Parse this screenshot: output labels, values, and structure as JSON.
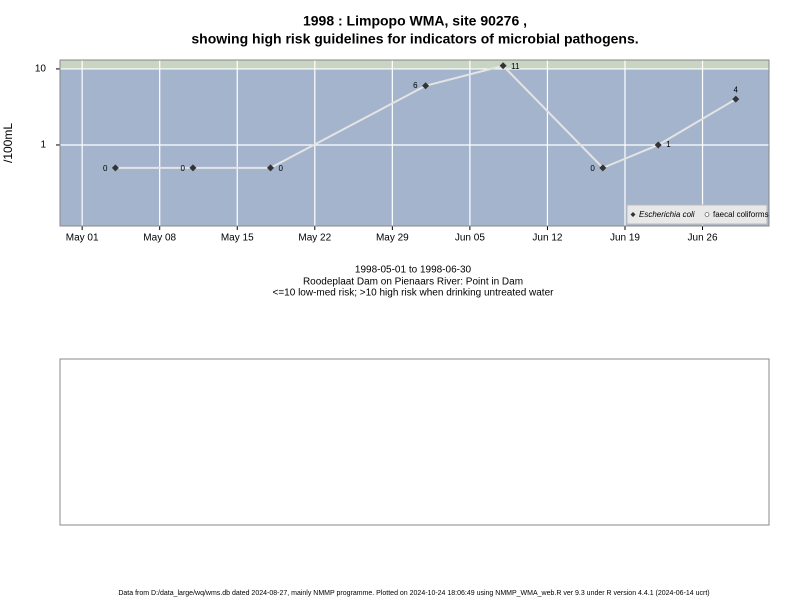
{
  "chart_data": {
    "type": "line",
    "title": "1998 : Limpopo WMA, site 90276 ,",
    "title_line2": "showing high risk guidelines for indicators of microbial pathogens.",
    "y_label": "/100mL",
    "subtitle": [
      "1998-05-01 to 1998-06-30",
      "Roodeplaat Dam on Pienaars River: Point in Dam",
      "<=10 low-med risk; >10 high risk when drinking untreated water"
    ],
    "footer": "Data from D:/data_large/wq/wms.db dated 2024-08-27, mainly NMMP programme. Plotted on 2024-10-24 18:06:49 using NMMP_WMA_web.R ver 9.3 under R version 4.4.1 (2024-06-14 ucrt)",
    "x": [
      "1998-05-04",
      "1998-05-11",
      "1998-05-18",
      "1998-06-01",
      "1998-06-08",
      "1998-06-17",
      "1998-06-22",
      "1998-06-29"
    ],
    "series": [
      {
        "name": "Escherichia coli",
        "color": "#333333",
        "line_color": "#e4e4e4",
        "values": [
          0.5,
          0.5,
          0.5,
          6,
          11,
          0.5,
          1,
          4
        ],
        "value_labels": [
          "0",
          "0",
          "0",
          "6",
          "11",
          "0",
          "1",
          "4"
        ]
      },
      {
        "name": "faecal coliforms",
        "color": "#ffffff",
        "values": [
          null,
          null,
          null,
          null,
          null,
          null,
          null,
          null
        ]
      }
    ],
    "log_y": true,
    "ylim": [
      0.086,
      13.1
    ],
    "yticks": [
      1,
      10
    ],
    "high_risk_threshold": 10,
    "xlim": [
      "1998-04-29",
      "1998-07-02"
    ],
    "xticks": [
      {
        "value": "1998-05-01",
        "label": "May 01"
      },
      {
        "value": "1998-05-08",
        "label": "May 08"
      },
      {
        "value": "1998-05-15",
        "label": "May 15"
      },
      {
        "value": "1998-05-22",
        "label": "May 22"
      },
      {
        "value": "1998-05-29",
        "label": "May 29"
      },
      {
        "value": "1998-06-05",
        "label": "Jun 05"
      },
      {
        "value": "1998-06-12",
        "label": "Jun 12"
      },
      {
        "value": "1998-06-19",
        "label": "Jun 19"
      },
      {
        "value": "1998-06-26",
        "label": "Jun 26"
      }
    ],
    "grid": true,
    "legend_position": "bottom-right"
  }
}
